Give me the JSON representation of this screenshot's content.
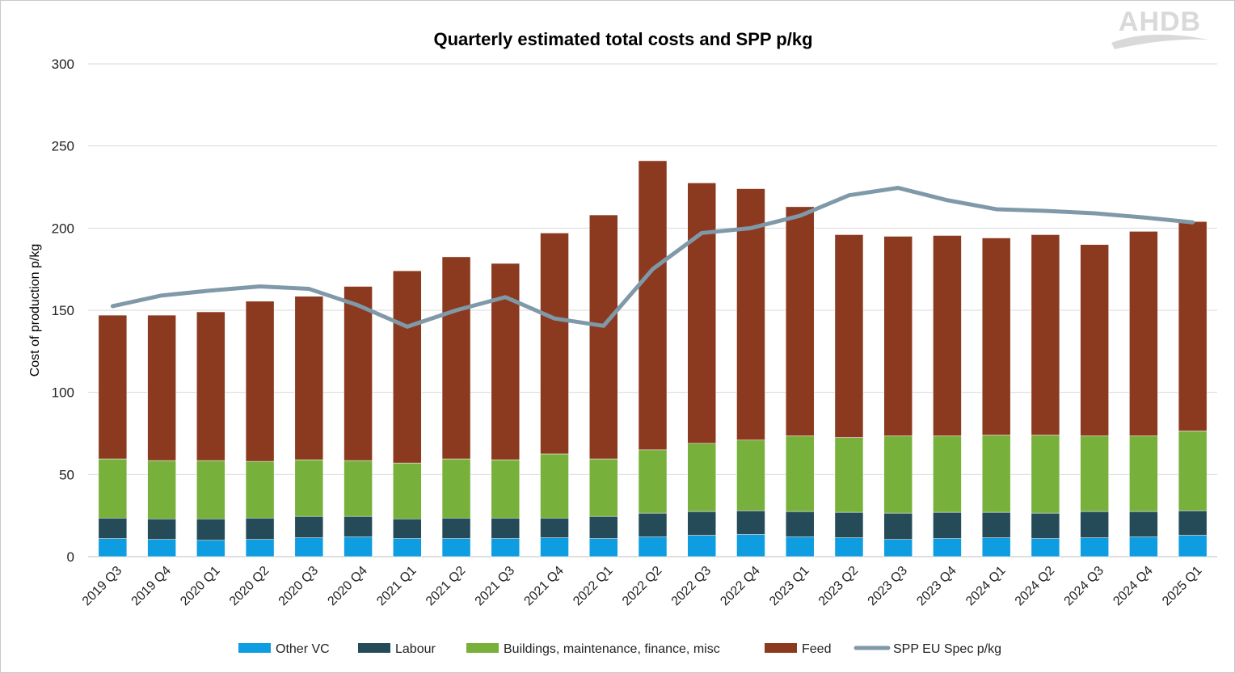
{
  "chart_data": {
    "type": "bar",
    "stacked": true,
    "title": "Quarterly estimated total costs and SPP p/kg",
    "xlabel": "",
    "ylabel": "Cost of production p/kg",
    "ylim": [
      0,
      300
    ],
    "yticks": [
      0,
      50,
      100,
      150,
      200,
      250,
      300
    ],
    "grid": true,
    "legend_position": "bottom",
    "logo_text": "AHDB",
    "categories": [
      "2019 Q3",
      "2019 Q4",
      "2020 Q1",
      "2020 Q2",
      "2020 Q3",
      "2020 Q4",
      "2021 Q1",
      "2021 Q2",
      "2021 Q3",
      "2021 Q4",
      "2022 Q1",
      "2022 Q2",
      "2022 Q3",
      "2022 Q4",
      "2023 Q1",
      "2023 Q2",
      "2023 Q3",
      "2023 Q4",
      "2024 Q1",
      "2024 Q2",
      "2024 Q3",
      "2024 Q4",
      "2025 Q1"
    ],
    "series": [
      {
        "name": "Other VC",
        "color": "#0E9DE0",
        "kind": "bar",
        "values": [
          11,
          10.5,
          10,
          10.5,
          11.5,
          12,
          11,
          11,
          11,
          11.5,
          11,
          12,
          13,
          13.5,
          12,
          11.5,
          10.5,
          11,
          11.5,
          11,
          11.5,
          12,
          13
        ]
      },
      {
        "name": "Labour",
        "color": "#254B59",
        "kind": "bar",
        "values": [
          12.5,
          12.5,
          13,
          13,
          13,
          12.5,
          12,
          12.5,
          12.5,
          12,
          13.5,
          14.5,
          14.5,
          14.5,
          15.5,
          15.5,
          16,
          16,
          15.5,
          15.5,
          16,
          15.5,
          15
        ]
      },
      {
        "name": "Buildings, maintenance, finance, misc",
        "color": "#77B03A",
        "kind": "bar",
        "values": [
          36,
          35.5,
          35.5,
          34.5,
          34.5,
          34,
          34,
          36,
          35.5,
          39,
          35,
          38.5,
          41.5,
          43,
          46,
          45.5,
          47,
          46.5,
          47,
          47.5,
          46,
          46,
          48.5
        ]
      },
      {
        "name": "Feed",
        "color": "#8B3A1F",
        "kind": "bar",
        "values": [
          87.5,
          88.5,
          90.5,
          97.5,
          99.5,
          106,
          117,
          123,
          119.5,
          134.5,
          148.5,
          176,
          158.5,
          153,
          139.5,
          123.5,
          121.5,
          122,
          120,
          122,
          116.5,
          124.5,
          127.5
        ]
      },
      {
        "name": "SPP EU Spec p/kg",
        "color": "#7F99A8",
        "kind": "line",
        "values": [
          152.5,
          159,
          162,
          164.5,
          163,
          153,
          140,
          150,
          158,
          145,
          140.5,
          175,
          197,
          200,
          207.5,
          220,
          224.5,
          217,
          211.5,
          210.5,
          209,
          206.5,
          203.5
        ]
      }
    ]
  }
}
